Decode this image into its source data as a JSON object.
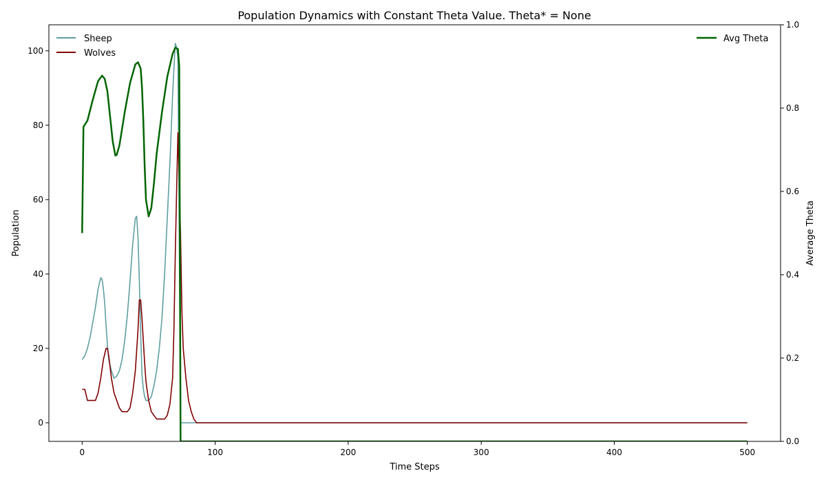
{
  "chart_data": {
    "type": "line",
    "title": "Population Dynamics with Constant Theta Value. Theta* = None",
    "xlabel": "Time Steps",
    "ylabel": "Population",
    "ylabel_right": "Average Theta",
    "xlim": [
      -25,
      525
    ],
    "ylim": [
      -5,
      107
    ],
    "ylim_right": [
      0.0,
      1.0
    ],
    "xticks": [
      0,
      100,
      200,
      300,
      400,
      500
    ],
    "yticks": [
      0,
      20,
      40,
      60,
      80,
      100
    ],
    "yticks_right": [
      0.0,
      0.2,
      0.4,
      0.6,
      0.8,
      1.0
    ],
    "ytick_labels_right": [
      "0.0",
      "0.2",
      "0.4",
      "0.6",
      "0.8",
      "1.0"
    ],
    "grid": false,
    "legend_left": "top-left",
    "legend_right": "top-right",
    "series": [
      {
        "name": "Sheep",
        "axis": "left",
        "color": "#5f9ea0",
        "points": [
          [
            0,
            17
          ],
          [
            2,
            18
          ],
          [
            4,
            20
          ],
          [
            6,
            23
          ],
          [
            8,
            27
          ],
          [
            10,
            31
          ],
          [
            12,
            36
          ],
          [
            14,
            39
          ],
          [
            15,
            38.5
          ],
          [
            16,
            36
          ],
          [
            17,
            32
          ],
          [
            18,
            26
          ],
          [
            19,
            21
          ],
          [
            20,
            17
          ],
          [
            22,
            14
          ],
          [
            24,
            12
          ],
          [
            26,
            12.5
          ],
          [
            28,
            14
          ],
          [
            30,
            17
          ],
          [
            32,
            22
          ],
          [
            34,
            29
          ],
          [
            36,
            38
          ],
          [
            38,
            48
          ],
          [
            40,
            55
          ],
          [
            41,
            55.5
          ],
          [
            42,
            50
          ],
          [
            43,
            38
          ],
          [
            44,
            24
          ],
          [
            45,
            13
          ],
          [
            46,
            9
          ],
          [
            47,
            7
          ],
          [
            48,
            6
          ],
          [
            50,
            6
          ],
          [
            52,
            7
          ],
          [
            54,
            10
          ],
          [
            56,
            14
          ],
          [
            58,
            20
          ],
          [
            60,
            28
          ],
          [
            62,
            40
          ],
          [
            64,
            55
          ],
          [
            66,
            70
          ],
          [
            68,
            88
          ],
          [
            70,
            102
          ],
          [
            71,
            101
          ],
          [
            72,
            98
          ],
          [
            73,
            50
          ],
          [
            74,
            0
          ],
          [
            500,
            0
          ]
        ]
      },
      {
        "name": "Wolves",
        "axis": "left",
        "color": "#800000",
        "points": [
          [
            0,
            9
          ],
          [
            2,
            9
          ],
          [
            4,
            6
          ],
          [
            6,
            6
          ],
          [
            8,
            6
          ],
          [
            10,
            6
          ],
          [
            12,
            8
          ],
          [
            14,
            12
          ],
          [
            16,
            17
          ],
          [
            18,
            20
          ],
          [
            19,
            20
          ],
          [
            20,
            18
          ],
          [
            21,
            15
          ],
          [
            22,
            12
          ],
          [
            24,
            8
          ],
          [
            26,
            6
          ],
          [
            28,
            4
          ],
          [
            30,
            3
          ],
          [
            32,
            3
          ],
          [
            34,
            3
          ],
          [
            36,
            4
          ],
          [
            38,
            8
          ],
          [
            40,
            14
          ],
          [
            42,
            25
          ],
          [
            43,
            33
          ],
          [
            44,
            33
          ],
          [
            45,
            28
          ],
          [
            46,
            22
          ],
          [
            47,
            16
          ],
          [
            48,
            11
          ],
          [
            50,
            6
          ],
          [
            52,
            3
          ],
          [
            54,
            2
          ],
          [
            56,
            1
          ],
          [
            58,
            1
          ],
          [
            60,
            1
          ],
          [
            62,
            1
          ],
          [
            64,
            2
          ],
          [
            66,
            5
          ],
          [
            68,
            12
          ],
          [
            69,
            25
          ],
          [
            70,
            45
          ],
          [
            71,
            62
          ],
          [
            72,
            78
          ],
          [
            73,
            65
          ],
          [
            74,
            50
          ],
          [
            75,
            30
          ],
          [
            76,
            20
          ],
          [
            78,
            12
          ],
          [
            80,
            6
          ],
          [
            82,
            3
          ],
          [
            84,
            1
          ],
          [
            86,
            0
          ],
          [
            500,
            0
          ]
        ]
      },
      {
        "name": "Avg Theta",
        "axis": "right",
        "color": "#006400",
        "points": [
          [
            0,
            0.5
          ],
          [
            1,
            0.755
          ],
          [
            4,
            0.77
          ],
          [
            8,
            0.82
          ],
          [
            12,
            0.865
          ],
          [
            15,
            0.878
          ],
          [
            17,
            0.87
          ],
          [
            19,
            0.84
          ],
          [
            21,
            0.78
          ],
          [
            23,
            0.72
          ],
          [
            25,
            0.686
          ],
          [
            26,
            0.688
          ],
          [
            28,
            0.71
          ],
          [
            32,
            0.79
          ],
          [
            36,
            0.86
          ],
          [
            40,
            0.905
          ],
          [
            42,
            0.91
          ],
          [
            44,
            0.895
          ],
          [
            45,
            0.85
          ],
          [
            46,
            0.77
          ],
          [
            47,
            0.66
          ],
          [
            48,
            0.58
          ],
          [
            50,
            0.54
          ],
          [
            52,
            0.56
          ],
          [
            54,
            0.62
          ],
          [
            56,
            0.69
          ],
          [
            60,
            0.79
          ],
          [
            64,
            0.875
          ],
          [
            68,
            0.93
          ],
          [
            70,
            0.945
          ],
          [
            72,
            0.942
          ],
          [
            73,
            0.9
          ],
          [
            74,
            0.0
          ],
          [
            500,
            0.0
          ]
        ]
      }
    ]
  }
}
